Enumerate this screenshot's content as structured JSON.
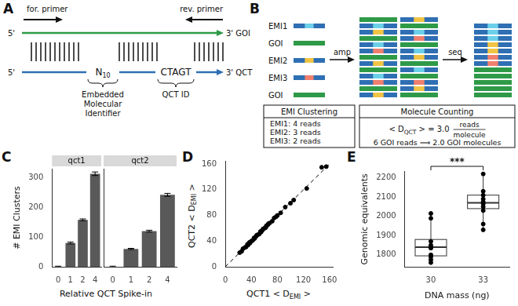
{
  "diagram_a": {
    "panel_label": "A",
    "forward_primer": "for. primer",
    "reverse_primer": "rev. primer",
    "goi_strand": {
      "start": "5'",
      "end": "3' GOI",
      "color": "#2e9a48"
    },
    "qct_strand": {
      "start": "5'",
      "end": "3' QCT",
      "color": "#2f6fb3"
    },
    "emi": {
      "text": "N",
      "subscript": "10",
      "caption": [
        "Embedded",
        "Molecular",
        "Identifier"
      ]
    },
    "qct_id": {
      "text": "CTAGT",
      "caption": "QCT ID"
    }
  },
  "diagram_b": {
    "panel_label": "B",
    "molecules": [
      {
        "label": "EMI1",
        "segment": "#6cd0e8"
      },
      {
        "label": "GOI"
      },
      {
        "label": "EMI2",
        "segment": "#f2c444"
      },
      {
        "label": "EMI3",
        "segment": "#f07f6e"
      },
      {
        "label": "GOI"
      }
    ],
    "amp": "amp",
    "seq": "seq",
    "clustering": {
      "title": "EMI Clustering",
      "lines": [
        "EMI1: 4 reads",
        "EMI2: 3 reads",
        "EMI3: 2 reads"
      ]
    },
    "counting": {
      "title": "Molecule Counting",
      "formula": {
        "before": "< D",
        "subscript": "QCT",
        "after": " > = 3.0",
        "numerator": "reads",
        "denominator": "molecule"
      },
      "result": "6 GOI reads ⟹ 2.0 GOI molecules"
    }
  },
  "chart_data": [
    {
      "type": "bar",
      "panel_label": "C",
      "xlabel": "Relative QCT Spike-in",
      "ylabel": "# EMI Clusters",
      "categories": [
        "0",
        "1",
        "2",
        "4"
      ],
      "series": [
        {
          "name": "qct1",
          "values": [
            0,
            80,
            158,
            313
          ],
          "errors": [
            2,
            3,
            3,
            6
          ]
        },
        {
          "name": "qct2",
          "values": [
            0,
            60,
            120,
            242
          ],
          "errors": [
            2,
            2,
            3,
            5
          ]
        }
      ],
      "color": "#595959",
      "ylim": [
        0,
        330
      ],
      "yticks": [
        0,
        100,
        200,
        300
      ],
      "grid": false
    },
    {
      "type": "scatter",
      "panel_label": "D",
      "xlabel": {
        "text": "QCT1 < D",
        "subscript": "EMI",
        "after": " >"
      },
      "ylabel": {
        "text": "QCT2 < D",
        "subscript": "EMI",
        "after": " >"
      },
      "series": [
        {
          "type": "scatter",
          "marker": "circle",
          "color": "#000000",
          "x": [
            22,
            25,
            27,
            30,
            32,
            34,
            35,
            37,
            38,
            40,
            42,
            44,
            45,
            47,
            48,
            50,
            52,
            54,
            55,
            57,
            58,
            60,
            62,
            63,
            65,
            66,
            68,
            72,
            75,
            78,
            80,
            85,
            92,
            100,
            105,
            125,
            148,
            155
          ],
          "values": [
            22,
            24,
            28,
            30,
            31,
            35,
            34,
            38,
            37,
            40,
            41,
            45,
            44,
            47,
            49,
            50,
            51,
            55,
            54,
            57,
            59,
            60,
            61,
            64,
            65,
            67,
            68,
            71,
            76,
            78,
            80,
            84,
            93,
            99,
            104,
            122,
            155,
            156
          ]
        },
        {
          "type": "line",
          "line_style": "dashed",
          "color": "#000000",
          "x": [
            0,
            160
          ],
          "values": [
            0,
            160
          ]
        }
      ],
      "xlim": [
        0,
        165
      ],
      "ylim": [
        0,
        165
      ],
      "xticks": [
        0,
        40,
        80,
        120,
        160
      ],
      "yticks": [
        0,
        40,
        80,
        120,
        160
      ],
      "grid": false
    },
    {
      "type": "box",
      "panel_label": "E",
      "xlabel": "DNA mass (ng)",
      "ylabel": "Genomic equivalents",
      "categories": [
        "30",
        "33"
      ],
      "points": [
        [
          1760,
          1775,
          1790,
          1800,
          1835,
          1840,
          1850,
          1870,
          1990,
          2015
        ],
        [
          1930,
          1960,
          2030,
          2050,
          2065,
          2075,
          2090,
          2110,
          2130,
          2220
        ]
      ],
      "boxes": [
        {
          "whisker_low": 1760,
          "q1": 1795,
          "median": 1840,
          "q3": 1880,
          "whisker_high": 2015
        },
        {
          "whisker_low": 1930,
          "q1": 2040,
          "median": 2070,
          "q3": 2110,
          "whisker_high": 2220
        }
      ],
      "annotations": [
        {
          "text": "***",
          "from": "30",
          "to": "33"
        }
      ],
      "color": "#000000",
      "ylim": [
        1735,
        2235
      ],
      "yticks": [
        1800,
        1900,
        2000,
        2100,
        2200
      ],
      "grid": false
    }
  ]
}
